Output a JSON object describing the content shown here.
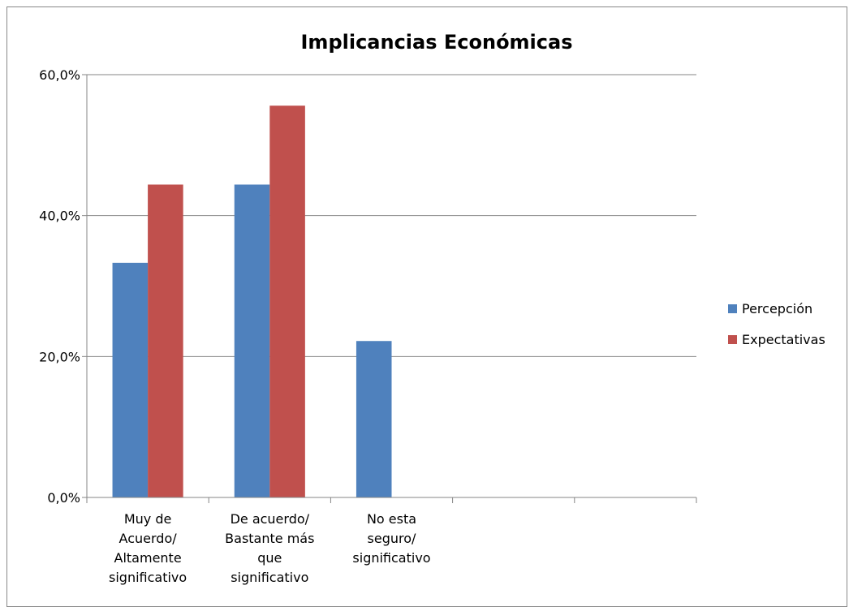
{
  "chart_data": {
    "type": "bar",
    "title": "Implicancias Económicas",
    "xlabel": "",
    "ylabel": "",
    "ylim": [
      0,
      60
    ],
    "y_ticks": [
      "0,0%",
      "20,0%",
      "40,0%",
      "60,0%"
    ],
    "grid": true,
    "legend_position": "right",
    "categories": [
      [
        "Muy de",
        "Acuerdo/",
        "Altamente",
        "significativo"
      ],
      [
        "De acuerdo/",
        "Bastante más",
        "que",
        "significativo"
      ],
      [
        "No esta",
        "seguro/",
        "significativo"
      ],
      [],
      []
    ],
    "series": [
      {
        "name": "Percepción",
        "color": "#4F81BD",
        "values": [
          33.3,
          44.4,
          22.2,
          null,
          null
        ]
      },
      {
        "name": "Expectativas",
        "color": "#C0504D",
        "values": [
          44.4,
          55.6,
          null,
          null,
          null
        ]
      }
    ]
  }
}
